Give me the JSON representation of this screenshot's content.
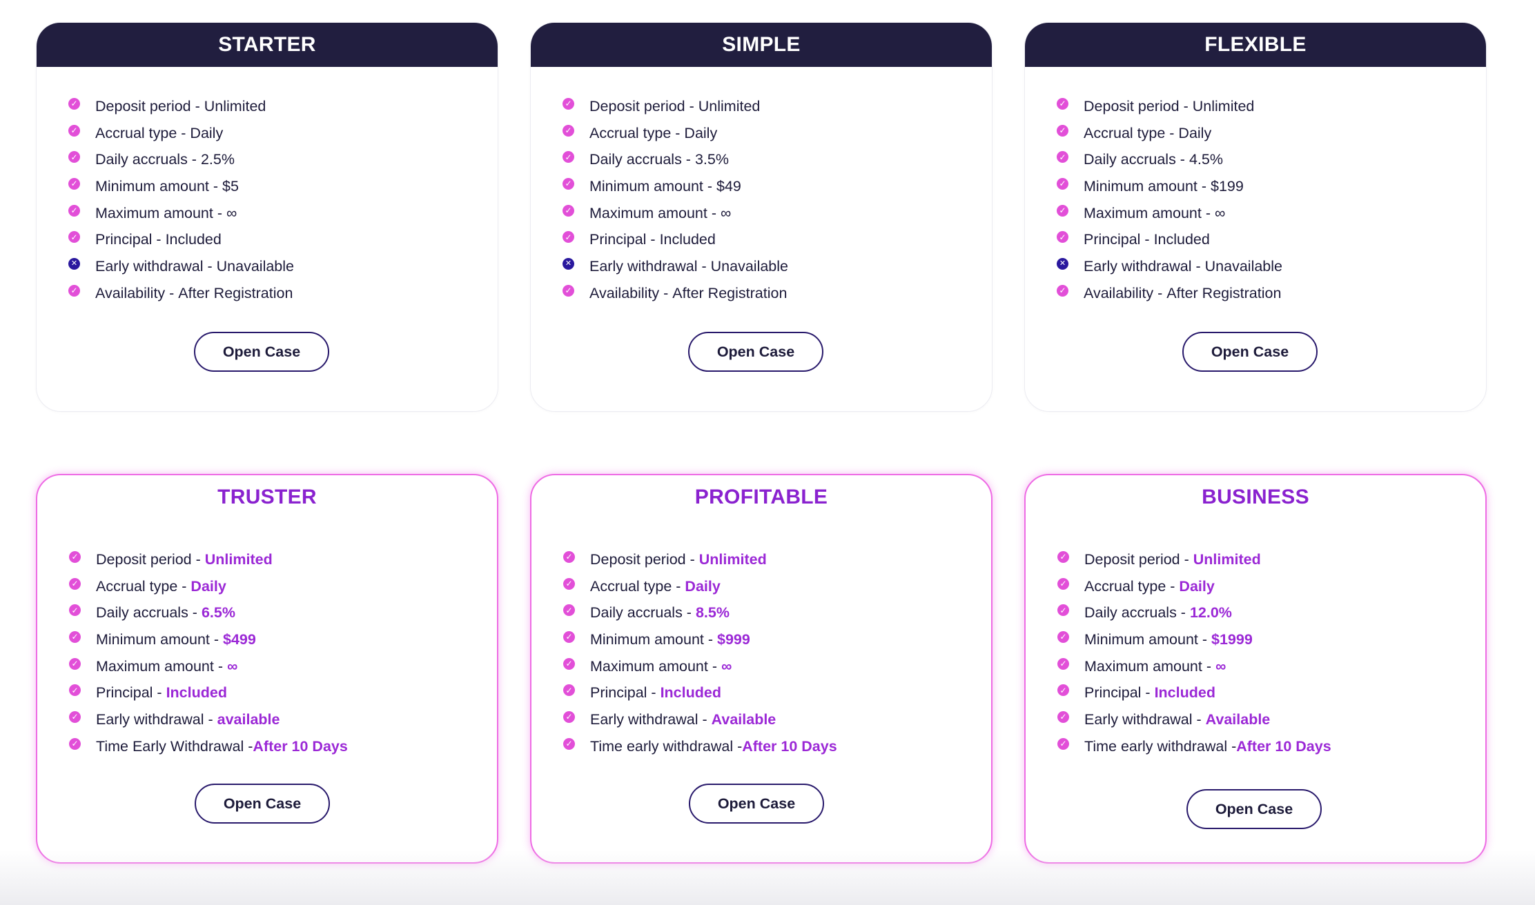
{
  "button_label": "Open Case",
  "colors": {
    "header_dark": "#211e3f",
    "accent_purple": "#9b28d6",
    "check_pink": "#e24fd8",
    "cross_navy": "#2a189e",
    "premium_border": "#ee6be4"
  },
  "plans": [
    {
      "title": "STARTER",
      "style": "basic",
      "features": [
        {
          "label": "Deposit period - ",
          "value": "Unlimited",
          "ok": true
        },
        {
          "label": "Accrual type - ",
          "value": "Daily",
          "ok": true
        },
        {
          "label": "Daily accruals - ",
          "value": "2.5%",
          "ok": true
        },
        {
          "label": "Minimum amount - ",
          "value": "$5",
          "ok": true
        },
        {
          "label": "Maximum amount - ",
          "value": "∞",
          "ok": true
        },
        {
          "label": "Principal - ",
          "value": "Included",
          "ok": true
        },
        {
          "label": "Early withdrawal - ",
          "value": "Unavailable",
          "ok": false
        },
        {
          "label": "Availability - ",
          "value": "After Registration",
          "ok": true
        }
      ]
    },
    {
      "title": "SIMPLE",
      "style": "basic",
      "features": [
        {
          "label": "Deposit period - ",
          "value": "Unlimited",
          "ok": true
        },
        {
          "label": "Accrual type - ",
          "value": "Daily",
          "ok": true
        },
        {
          "label": "Daily accruals - ",
          "value": "3.5%",
          "ok": true
        },
        {
          "label": "Minimum amount - ",
          "value": "$49",
          "ok": true
        },
        {
          "label": "Maximum amount - ",
          "value": "∞",
          "ok": true
        },
        {
          "label": "Principal - ",
          "value": "Included",
          "ok": true
        },
        {
          "label": "Early withdrawal - ",
          "value": "Unavailable",
          "ok": false
        },
        {
          "label": "Availability - ",
          "value": "After Registration",
          "ok": true
        }
      ]
    },
    {
      "title": "FLEXIBLE",
      "style": "basic",
      "features": [
        {
          "label": "Deposit period - ",
          "value": "Unlimited",
          "ok": true
        },
        {
          "label": "Accrual type - ",
          "value": "Daily",
          "ok": true
        },
        {
          "label": "Daily accruals - ",
          "value": "4.5%",
          "ok": true
        },
        {
          "label": "Minimum amount - ",
          "value": "$199",
          "ok": true
        },
        {
          "label": "Maximum amount - ",
          "value": "∞",
          "ok": true
        },
        {
          "label": "Principal - ",
          "value": "Included",
          "ok": true
        },
        {
          "label": "Early withdrawal - ",
          "value": "Unavailable",
          "ok": false
        },
        {
          "label": "Availability - ",
          "value": "After Registration",
          "ok": true
        }
      ]
    },
    {
      "title": "TRUSTER",
      "style": "premium",
      "features": [
        {
          "label": "Deposit period - ",
          "value": "Unlimited",
          "ok": true
        },
        {
          "label": "Accrual type - ",
          "value": "Daily",
          "ok": true
        },
        {
          "label": "Daily accruals - ",
          "value": "6.5%",
          "ok": true
        },
        {
          "label": "Minimum amount - ",
          "value": "$499",
          "ok": true
        },
        {
          "label": "Maximum amount - ",
          "value": "∞",
          "ok": true
        },
        {
          "label": "Principal - ",
          "value": "Included",
          "ok": true
        },
        {
          "label": "Early withdrawal - ",
          "value": "available",
          "ok": true
        },
        {
          "label": "Time Early Withdrawal -",
          "value": "After 10 Days",
          "ok": true
        }
      ]
    },
    {
      "title": "PROFITABLE",
      "style": "premium",
      "features": [
        {
          "label": "Deposit period - ",
          "value": "Unlimited",
          "ok": true
        },
        {
          "label": "Accrual type - ",
          "value": "Daily",
          "ok": true
        },
        {
          "label": "Daily accruals - ",
          "value": "8.5%",
          "ok": true
        },
        {
          "label": "Minimum amount - ",
          "value": "$999",
          "ok": true
        },
        {
          "label": "Maximum amount - ",
          "value": "∞",
          "ok": true
        },
        {
          "label": "Principal - ",
          "value": "Included",
          "ok": true
        },
        {
          "label": "Early withdrawal - ",
          "value": "Available",
          "ok": true
        },
        {
          "label": "Time early withdrawal -",
          "value": "After 10 Days",
          "ok": true
        }
      ]
    },
    {
      "title": "BUSINESS",
      "style": "premium",
      "features": [
        {
          "label": "Deposit period - ",
          "value": "Unlimited",
          "ok": true
        },
        {
          "label": "Accrual type - ",
          "value": "Daily",
          "ok": true
        },
        {
          "label": "Daily accruals - ",
          "value": "12.0%",
          "ok": true
        },
        {
          "label": "Minimum amount - ",
          "value": "$1999",
          "ok": true
        },
        {
          "label": "Maximum amount - ",
          "value": "∞",
          "ok": true
        },
        {
          "label": "Principal - ",
          "value": "Included",
          "ok": true
        },
        {
          "label": "Early withdrawal - ",
          "value": "Available",
          "ok": true
        },
        {
          "label": "Time early withdrawal -",
          "value": "After 10 Days",
          "ok": true
        }
      ]
    }
  ]
}
